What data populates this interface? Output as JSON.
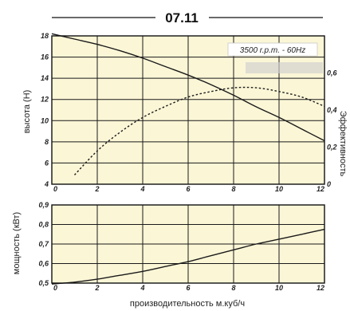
{
  "chart_title": "07.11",
  "speed_label": "3500 r.p.m. - 60Hz",
  "xlabel": "производительность м.куб/ч",
  "chart_data": [
    {
      "type": "line",
      "ylabel": "высота (H)",
      "y2label": "Эффективность",
      "xlim": [
        0,
        12
      ],
      "ylim": [
        4,
        18
      ],
      "y2lim": [
        0,
        0.8
      ],
      "x_ticks": [
        0,
        2,
        4,
        6,
        8,
        10,
        12
      ],
      "y_ticks": [
        4,
        6,
        8,
        10,
        12,
        14,
        16,
        18
      ],
      "y2_ticks": [
        0,
        0.2,
        0.4,
        0.6
      ],
      "y2_tick_labels": [
        "0",
        "0,2",
        "0,4",
        "0,6"
      ],
      "grid": true,
      "series": [
        {
          "axis": "left",
          "style": "solid",
          "x": [
            0,
            1,
            2,
            3,
            4,
            5,
            6,
            7,
            8,
            9,
            10,
            11,
            12
          ],
          "y": [
            18.2,
            17.7,
            17.2,
            16.6,
            15.9,
            15.1,
            14.3,
            13.4,
            12.4,
            11.3,
            10.3,
            9.2,
            8.1
          ]
        },
        {
          "axis": "right",
          "style": "dotted",
          "x": [
            1,
            2,
            3,
            4,
            5,
            6,
            7,
            8,
            9,
            10,
            11,
            12
          ],
          "y": [
            0.05,
            0.18,
            0.28,
            0.36,
            0.42,
            0.47,
            0.5,
            0.52,
            0.52,
            0.5,
            0.47,
            0.42
          ]
        }
      ]
    },
    {
      "type": "line",
      "ylabel": "мощность (кВт)",
      "xlim": [
        0,
        12
      ],
      "ylim": [
        0.5,
        0.9
      ],
      "x_ticks": [
        0,
        2,
        4,
        6,
        8,
        10,
        12
      ],
      "y_ticks": [
        0.5,
        0.6,
        0.7,
        0.8,
        0.9
      ],
      "y_tick_labels": [
        "0,5",
        "0,6",
        "0,7",
        "0,8",
        "0,9"
      ],
      "grid": true,
      "series": [
        {
          "axis": "left",
          "style": "solid",
          "x": [
            0,
            1,
            2,
            3,
            4,
            5,
            6,
            7,
            8,
            9,
            10,
            11,
            12
          ],
          "y": [
            0.495,
            0.505,
            0.52,
            0.54,
            0.56,
            0.585,
            0.61,
            0.64,
            0.67,
            0.7,
            0.725,
            0.75,
            0.775
          ]
        }
      ]
    }
  ]
}
